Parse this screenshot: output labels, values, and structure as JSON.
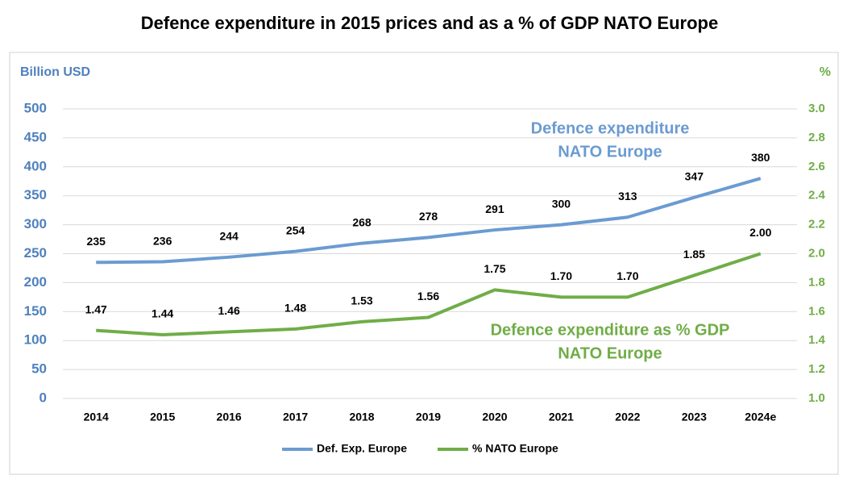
{
  "chart_data": {
    "type": "line",
    "title": "Defence expenditure in 2015 prices and as a % of GDP NATO Europe",
    "y_label": "Billion USD",
    "y2_label": "%",
    "categories": [
      "2014",
      "2015",
      "2016",
      "2017",
      "2018",
      "2019",
      "2020",
      "2021",
      "2022",
      "2023",
      "2024e"
    ],
    "series": [
      {
        "name": "Def. Exp. Europe",
        "color": "#6b9bd1",
        "values": [
          235,
          236,
          244,
          254,
          268,
          278,
          291,
          300,
          313,
          347,
          380
        ]
      },
      {
        "name": "% NATO Europe",
        "color": "#70ad47",
        "axis": "y2",
        "values": [
          1.47,
          1.44,
          1.46,
          1.48,
          1.53,
          1.56,
          1.75,
          1.7,
          1.7,
          1.85,
          2.0
        ],
        "value_labels": [
          "1.47",
          "1.44",
          "1.46",
          "1.48",
          "1.53",
          "1.56",
          "1.75",
          "1.70",
          "1.70",
          "1.85",
          "2.00"
        ]
      }
    ],
    "annotations": [
      {
        "lines": [
          "Defence expenditure",
          "NATO Europe"
        ],
        "color": "#6b9bd1"
      },
      {
        "lines": [
          "Defence expenditure as % GDP",
          "NATO Europe"
        ],
        "color": "#70ad47"
      }
    ],
    "ylim": [
      0,
      500
    ],
    "yticks": [
      0,
      50,
      100,
      150,
      200,
      250,
      300,
      350,
      400,
      450,
      500
    ],
    "y2lim": [
      1.0,
      3.0
    ],
    "y2ticks": [
      {
        "value": 1.0,
        "label": "1.0"
      },
      1.2,
      1.4,
      1.6,
      1.8,
      {
        "value": 2.0,
        "label": "2.0"
      },
      2.2,
      2.4,
      2.6,
      2.8,
      {
        "value": 3.0,
        "label": "3.0"
      }
    ],
    "grid": true,
    "legend": "bottom"
  }
}
